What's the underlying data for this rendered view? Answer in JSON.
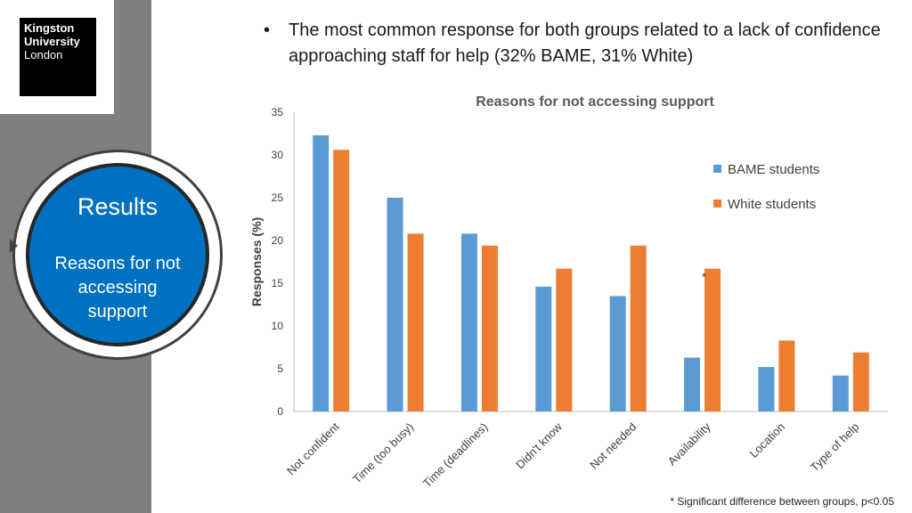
{
  "logo": {
    "line1": "Kingston",
    "line2": "University",
    "line3": "London"
  },
  "section": {
    "title": "Results",
    "subtitle": "Reasons for not accessing support"
  },
  "bullet_text": "The most common response for both groups related to a lack of confidence approaching staff for help (32% BAME, 31% White)",
  "bullet_symbol": "•",
  "footnote": "* Significant difference between groups,  p<0.05",
  "chart_data": {
    "type": "bar",
    "title": "Reasons for not accessing support",
    "ylabel": "Responses  (%)",
    "xlabel": "",
    "ylim": [
      0,
      35
    ],
    "yticks": [
      "0",
      "5",
      "10",
      "15",
      "20",
      "25",
      "30",
      "35"
    ],
    "categories": [
      "Not confident",
      "Time (too busy)",
      "Time (deadlines)",
      "Didn't know",
      "Not needed",
      "Availability",
      "Location",
      "Type of help"
    ],
    "series": [
      {
        "name": "BAME students",
        "color": "#5b9bd5",
        "values": [
          32.3,
          25.0,
          20.8,
          14.6,
          13.5,
          6.3,
          5.2,
          4.2
        ]
      },
      {
        "name": "White students",
        "color": "#ed7d31",
        "values": [
          30.6,
          20.8,
          19.4,
          16.7,
          19.4,
          16.7,
          8.3,
          6.9
        ]
      }
    ],
    "annotation": {
      "text": "*",
      "category": "Availability"
    },
    "legend_position": "right",
    "grid": false
  }
}
